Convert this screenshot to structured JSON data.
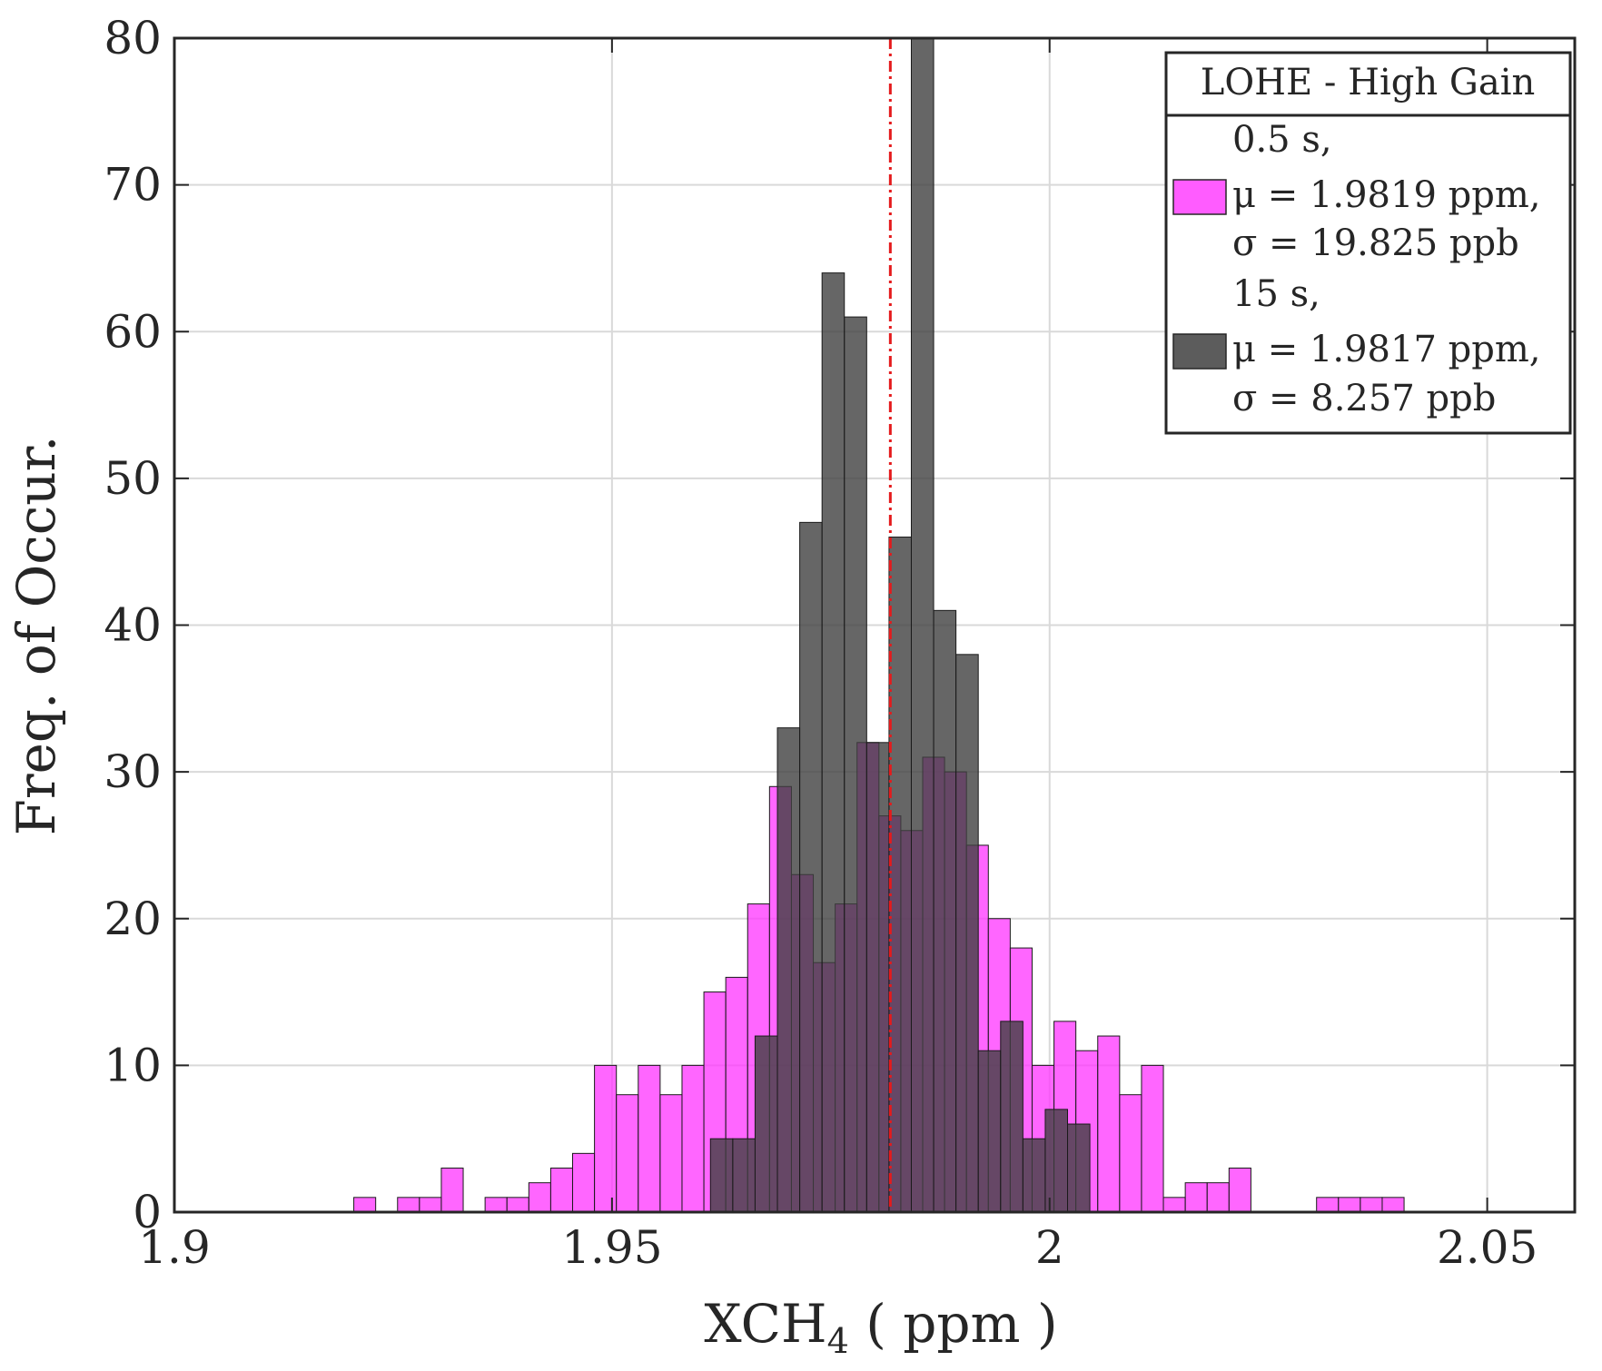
{
  "chart_data": {
    "type": "histogram",
    "xlabel": "XCH",
    "xlabel_subscript": "4",
    "xlabel_units": " ( ppm )",
    "ylabel": "Freq. of Occur.",
    "xlim": [
      1.9,
      2.06
    ],
    "ylim": [
      0,
      80
    ],
    "xticks": [
      1.9,
      1.95,
      2.0,
      2.05
    ],
    "xtick_labels": [
      "1.9",
      "1.95",
      "2",
      "2.05"
    ],
    "yticks": [
      0,
      10,
      20,
      30,
      40,
      50,
      60,
      70,
      80
    ],
    "ytick_labels": [
      "0",
      "10",
      "20",
      "30",
      "40",
      "50",
      "60",
      "70",
      "80"
    ],
    "grid": true,
    "mean_line": {
      "x": 1.9818,
      "color": "#e41a1c",
      "style": "dash-dot"
    },
    "legend": {
      "placement": "top-right",
      "title": "LOHE - High Gain",
      "entries": [
        {
          "lines": [
            "0.5 s,",
            "μ = 1.9819 ppm,",
            "σ = 19.825 ppb"
          ],
          "color": "#ff33ff"
        },
        {
          "lines": [
            "15 s,",
            "μ = 1.9817 ppm,",
            "σ = 8.257 ppb"
          ],
          "color": "#404040"
        }
      ]
    },
    "series": [
      {
        "name": "0.5 s",
        "color": "#ff33ff",
        "opacity": 0.75,
        "bin_start": 1.9205,
        "bin_width": 0.0025,
        "counts": [
          1,
          0,
          1,
          1,
          3,
          0,
          1,
          1,
          2,
          3,
          4,
          10,
          8,
          10,
          8,
          10,
          15,
          16,
          21,
          29,
          23,
          17,
          21,
          32,
          27,
          26,
          31,
          30,
          25,
          20,
          18,
          10,
          13,
          11,
          12,
          8,
          10,
          1,
          2,
          2,
          3,
          0,
          0,
          0,
          1,
          1,
          1,
          1
        ]
      },
      {
        "name": "15 s",
        "color": "#404040",
        "opacity": 0.8,
        "bin_start": 1.96125,
        "bin_width": 0.00255,
        "counts": [
          5,
          5,
          12,
          33,
          47,
          64,
          61,
          32,
          46,
          80,
          41,
          38,
          11,
          13,
          5,
          7,
          6
        ]
      }
    ]
  }
}
